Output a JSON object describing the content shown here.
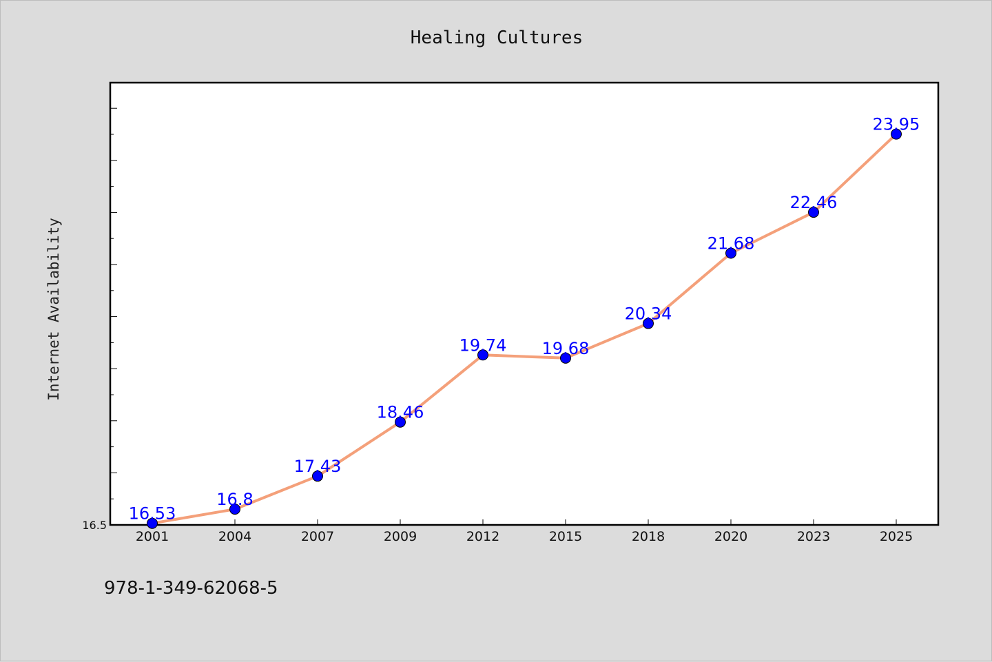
{
  "chart_data": {
    "type": "line",
    "title": "Healing Cultures",
    "xlabel": "",
    "ylabel": "Internet Availability",
    "categories": [
      "2001",
      "2004",
      "2007",
      "2009",
      "2012",
      "2015",
      "2018",
      "2020",
      "2023",
      "2025"
    ],
    "series": [
      {
        "values": [
          16.53,
          16.8,
          17.43,
          18.46,
          19.74,
          19.68,
          20.34,
          21.68,
          22.46,
          23.95
        ]
      }
    ],
    "data_labels": [
      "16.53",
      "16.8",
      "17.43",
      "18.46",
      "19.74",
      "19.68",
      "20.34",
      "21.68",
      "22.46",
      "23.95"
    ],
    "ylim": [
      16.5,
      24.93
    ],
    "y_tick_labels": [
      "16.5"
    ],
    "grid": false,
    "line_color": "#f4a07a",
    "marker_color": "#0000ff",
    "label_color": "#0000ff"
  },
  "footer_text": "978-1-349-62068-5"
}
